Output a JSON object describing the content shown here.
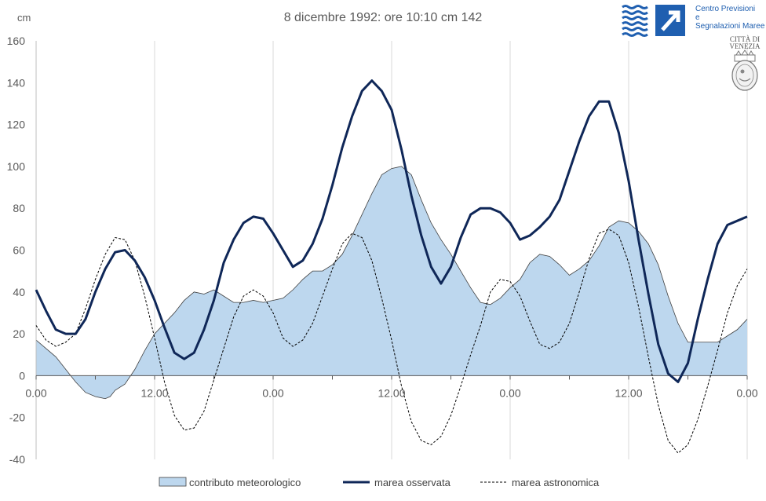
{
  "chart_data": {
    "type": "area",
    "title": "8 dicembre 1992: ore 10:10 cm 142",
    "ylabel": "cm",
    "ylim": [
      -40,
      160
    ],
    "yticks": [
      "160",
      "140",
      "120",
      "100",
      "80",
      "60",
      "40",
      "20",
      "0",
      "-20",
      "-40"
    ],
    "xlim": [
      0,
      72
    ],
    "xticks": [
      "0.00",
      "12.00",
      "0.00",
      "12.00",
      "0.00",
      "12.00",
      "0.00"
    ],
    "grid": "vertical",
    "legend_position": "bottom",
    "series": [
      {
        "name": "contributo meteorologico",
        "style": "filled-area",
        "fill": "#bdd7ee",
        "stroke": "#404040",
        "x": [
          0,
          2,
          3,
          4,
          5,
          6,
          7,
          7.5,
          8,
          9,
          10,
          11,
          12,
          13,
          14,
          15,
          16,
          17,
          18,
          19,
          20,
          21,
          22,
          23,
          24,
          25,
          26,
          27,
          28,
          29,
          30,
          31,
          32,
          33,
          34,
          35,
          36,
          37,
          38,
          39,
          40,
          41,
          42,
          43,
          44,
          45,
          46,
          47,
          48,
          49,
          50,
          51,
          52,
          53,
          54,
          55,
          56,
          57,
          58,
          59,
          60,
          61,
          62,
          63,
          64,
          65,
          66,
          67,
          68,
          69,
          70,
          71,
          72
        ],
        "values": [
          17,
          9,
          3,
          -3,
          -8,
          -10,
          -11,
          -10,
          -7,
          -4,
          3,
          12,
          20,
          25,
          30,
          36,
          40,
          39,
          41,
          38,
          35,
          35,
          36,
          35,
          36,
          37,
          41,
          46,
          50,
          50,
          53,
          58,
          67,
          77,
          87,
          96,
          99,
          100,
          96,
          84,
          73,
          65,
          58,
          50,
          42,
          35,
          34,
          37,
          42,
          46,
          54,
          58,
          57,
          53,
          48,
          51,
          55,
          62,
          71,
          74,
          73,
          69,
          63,
          53,
          38,
          25,
          16,
          16,
          16,
          16,
          19,
          22,
          27
        ]
      },
      {
        "name": "marea osservata",
        "style": "line",
        "color": "#0f2758",
        "x": [
          0,
          1,
          2,
          3,
          4,
          5,
          6,
          7,
          8,
          9,
          10,
          11,
          12,
          13,
          14,
          15,
          16,
          17,
          18,
          19,
          20,
          21,
          22,
          23,
          24,
          25,
          26,
          27,
          28,
          29,
          30,
          31,
          32,
          33,
          34,
          35,
          36,
          37,
          38,
          39,
          40,
          41,
          42,
          43,
          44,
          45,
          46,
          47,
          48,
          49,
          50,
          51,
          52,
          53,
          54,
          55,
          56,
          57,
          58,
          59,
          60,
          61,
          62,
          63,
          64,
          65,
          66,
          67,
          68,
          69,
          70,
          71,
          72
        ],
        "values": [
          41,
          31,
          22,
          20,
          20,
          27,
          40,
          51,
          59,
          60,
          55,
          47,
          36,
          23,
          11,
          8,
          11,
          22,
          36,
          54,
          65,
          73,
          76,
          75,
          68,
          60,
          52,
          55,
          63,
          75,
          91,
          109,
          124,
          136,
          141,
          136,
          127,
          108,
          86,
          67,
          52,
          44,
          52,
          66,
          77,
          80,
          80,
          78,
          73,
          65,
          67,
          71,
          76,
          84,
          98,
          112,
          124,
          131,
          131,
          116,
          93,
          65,
          39,
          15,
          1,
          -3,
          6,
          27,
          46,
          63,
          72,
          74,
          76
        ]
      },
      {
        "name": "marea astronomica",
        "style": "dashed-line",
        "color": "#000000",
        "x": [
          0,
          1,
          2,
          3,
          4,
          5,
          6,
          7,
          8,
          9,
          10,
          11,
          12,
          13,
          14,
          15,
          16,
          17,
          18,
          19,
          20,
          21,
          22,
          23,
          24,
          25,
          26,
          27,
          28,
          29,
          30,
          31,
          32,
          33,
          34,
          35,
          36,
          37,
          38,
          39,
          40,
          41,
          42,
          43,
          44,
          45,
          46,
          47,
          48,
          49,
          50,
          51,
          52,
          53,
          54,
          55,
          56,
          57,
          58,
          59,
          60,
          61,
          62,
          63,
          64,
          65,
          66,
          67,
          68,
          69,
          70,
          71,
          72
        ],
        "values": [
          24,
          17,
          14,
          16,
          20,
          32,
          46,
          58,
          66,
          65,
          55,
          38,
          18,
          -3,
          -19,
          -26,
          -25,
          -17,
          -2,
          13,
          28,
          38,
          41,
          38,
          30,
          18,
          14,
          17,
          25,
          38,
          51,
          63,
          68,
          66,
          55,
          37,
          17,
          -5,
          -22,
          -31,
          -33,
          -29,
          -19,
          -5,
          10,
          24,
          40,
          46,
          45,
          38,
          26,
          15,
          13,
          16,
          25,
          40,
          56,
          68,
          70,
          67,
          54,
          33,
          9,
          -14,
          -31,
          -37,
          -33,
          -21,
          -5,
          12,
          30,
          43,
          51
        ]
      }
    ],
    "legend": [
      "contributo meteorologico",
      "marea osservata",
      "marea astronomica"
    ]
  },
  "logo": {
    "line1": "Centro Previsioni",
    "line2": "e",
    "line3": "Segnalazioni Maree",
    "primary_color": "#1f5fb0",
    "icon": "waves-arrow-icon"
  },
  "city_emblem": {
    "line1": "CITTÀ DI",
    "line2": "VENEZIA",
    "icon": "lion-seal-icon"
  }
}
